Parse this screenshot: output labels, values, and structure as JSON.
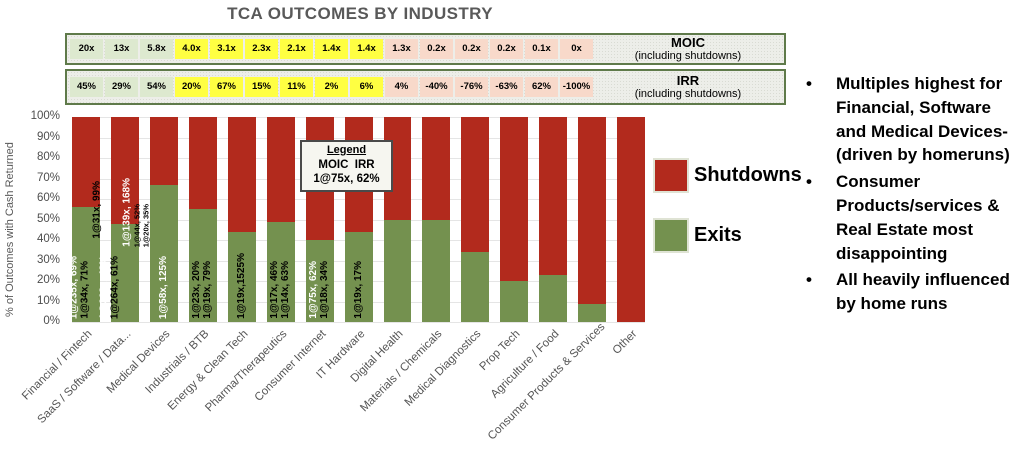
{
  "title": "TCA OUTCOMES BY INDUSTRY",
  "header": {
    "moic_label": "MOIC",
    "moic_note": "(including shutdowns)",
    "irr_label": "IRR",
    "irr_note": "(including shutdowns)",
    "moic": [
      {
        "value": "20x",
        "tone": "green"
      },
      {
        "value": "13x",
        "tone": "green"
      },
      {
        "value": "5.8x",
        "tone": "green"
      },
      {
        "value": "4.0x",
        "tone": "yellow"
      },
      {
        "value": "3.1x",
        "tone": "yellow"
      },
      {
        "value": "2.3x",
        "tone": "yellow"
      },
      {
        "value": "2.1x",
        "tone": "yellow"
      },
      {
        "value": "1.4x",
        "tone": "yellow"
      },
      {
        "value": "1.4x",
        "tone": "yellow"
      },
      {
        "value": "1.3x",
        "tone": "pink"
      },
      {
        "value": "0.2x",
        "tone": "pink"
      },
      {
        "value": "0.2x",
        "tone": "pink"
      },
      {
        "value": "0.2x",
        "tone": "pink"
      },
      {
        "value": "0.1x",
        "tone": "pink"
      },
      {
        "value": "0x",
        "tone": "pink"
      }
    ],
    "irr": [
      {
        "value": "45%",
        "tone": "green"
      },
      {
        "value": "29%",
        "tone": "green"
      },
      {
        "value": "54%",
        "tone": "green"
      },
      {
        "value": "20%",
        "tone": "yellow"
      },
      {
        "value": "67%",
        "tone": "yellow"
      },
      {
        "value": "15%",
        "tone": "yellow"
      },
      {
        "value": "11%",
        "tone": "yellow"
      },
      {
        "value": "2%",
        "tone": "yellow"
      },
      {
        "value": "6%",
        "tone": "yellow"
      },
      {
        "value": "4%",
        "tone": "pink"
      },
      {
        "value": "-40%",
        "tone": "pink"
      },
      {
        "value": "-76%",
        "tone": "pink"
      },
      {
        "value": "-63%",
        "tone": "pink"
      },
      {
        "value": "62%",
        "tone": "pink"
      },
      {
        "value": "-100%",
        "tone": "pink"
      }
    ]
  },
  "chart_data": {
    "type": "bar",
    "stacked": true,
    "title": "TCA OUTCOMES BY INDUSTRY",
    "ylabel": "% of Outcomes with Cash Returned",
    "ylim": [
      0,
      100
    ],
    "yticks": [
      "100%",
      "90%",
      "80%",
      "70%",
      "60%",
      "50%",
      "40%",
      "30%",
      "20%",
      "10%",
      "0%"
    ],
    "grid": true,
    "legend_position": "right",
    "legend": [
      {
        "name": "Shutdowns",
        "color": "#b22a1d"
      },
      {
        "name": "Exits",
        "color": "#74914f"
      }
    ],
    "categories": [
      "Financial / Fintech",
      "SaaS / Software / Data...",
      "Medical Devices",
      "Industrials / BTB",
      "Energy & Clean Tech",
      "Pharma/Therapeutics",
      "Consumer Internet",
      "IT Hardware",
      "Digital Health",
      "Materials / Chemicals",
      "Medical Diagnostics",
      "Prop Tech",
      "Agriculture / Food",
      "Consumer Products & Services",
      "Other"
    ],
    "series": [
      {
        "name": "Exits",
        "color": "#74914f",
        "values": [
          56,
          48,
          67,
          55,
          44,
          49,
          40,
          44,
          50,
          50,
          34,
          20,
          23,
          9,
          0
        ]
      },
      {
        "name": "Shutdowns",
        "color": "#b22a1d",
        "values": [
          44,
          52,
          33,
          45,
          56,
          51,
          60,
          56,
          50,
          50,
          66,
          80,
          77,
          91,
          100
        ]
      }
    ],
    "annotations": [
      [
        {
          "text": "1@235x, 69%",
          "color": "white",
          "raise": 0
        },
        {
          "text": "1@34x, 71%",
          "color": "black",
          "raise": 0
        },
        {
          "text": "1@31x, 99%",
          "color": "black",
          "raise": 80
        }
      ],
      [
        {
          "text": "1@368x, 48%",
          "color": "white",
          "raise": 0
        },
        {
          "text": "1@264x, 61%",
          "color": "black",
          "raise": 0
        },
        {
          "text": "1@139x, 168%",
          "color": "white",
          "raise": 72
        },
        {
          "text": "1@44x, 52%",
          "color": "black",
          "raise": 72,
          "small": true
        },
        {
          "text": "1@20x, 35%",
          "color": "black",
          "raise": 72,
          "small": true
        }
      ],
      [
        {
          "text": "1@58x, 125%",
          "color": "white",
          "raise": 0
        }
      ],
      [
        {
          "text": "1@23x, 20%",
          "color": "black",
          "raise": 0
        },
        {
          "text": "1@19x, 79%",
          "color": "black",
          "raise": 0
        }
      ],
      [
        {
          "text": "1@19x,1525%",
          "color": "black",
          "raise": 0
        }
      ],
      [
        {
          "text": "1@17x, 46%",
          "color": "black",
          "raise": 0
        },
        {
          "text": "1@14x, 63%",
          "color": "black",
          "raise": 0
        }
      ],
      [
        {
          "text": "1@75x, 62%",
          "color": "white",
          "raise": 0
        },
        {
          "text": "1@18x, 34%",
          "color": "black",
          "raise": 0
        }
      ],
      [
        {
          "text": "1@19x, 17%",
          "color": "black",
          "raise": 0
        }
      ],
      [],
      [],
      [],
      [],
      [],
      [],
      []
    ],
    "inner_legend": {
      "title": "Legend",
      "line1": "MOIC  IRR",
      "line2": "1@75x, 62%"
    }
  },
  "bullets": [
    "Multiples highest for Financial, Software and Medical Devices- (driven by homeruns)",
    "Consumer Products/services & Real Estate most disappointing",
    "All heavily influenced by home runs"
  ],
  "colors": {
    "shutdowns_red": "#b22a1d",
    "exits_green": "#74914f",
    "cell_green": "#dde9cf",
    "cell_yellow": "#ffff42",
    "cell_pink": "#f8d9ca",
    "header_border": "#5f7a4a",
    "title_gray": "#595959",
    "note_white": "#ffffff",
    "note_black": "#000000"
  }
}
